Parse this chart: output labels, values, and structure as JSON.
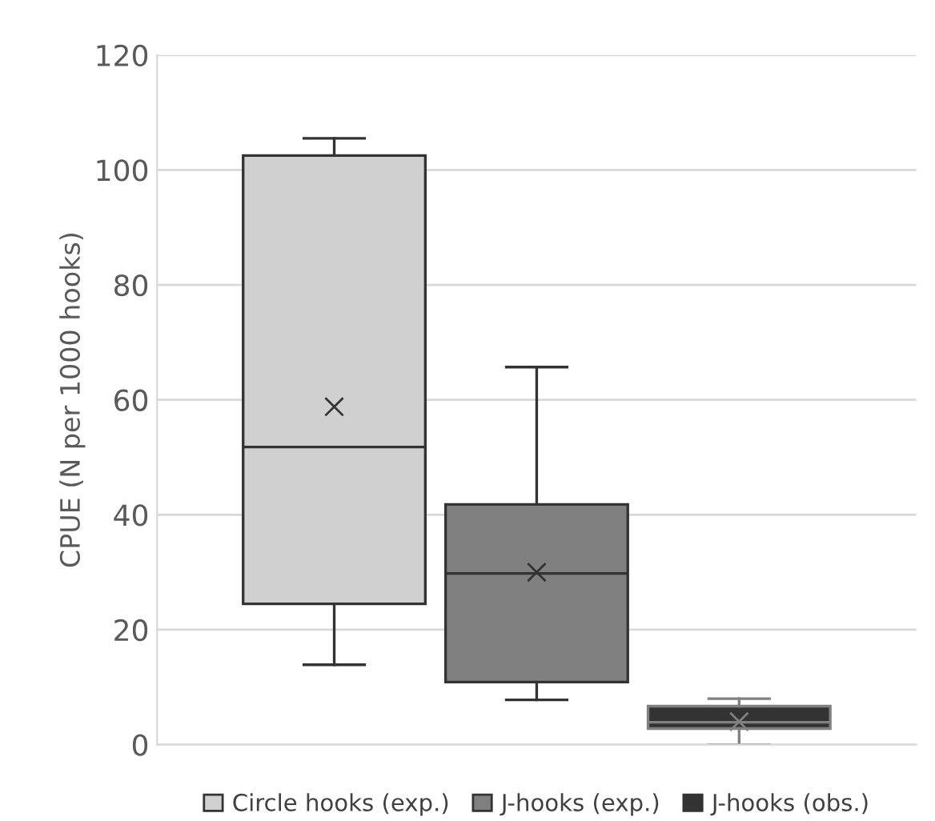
{
  "chart_data": {
    "type": "box",
    "ylabel": "CPUE (N per 1000 hooks)",
    "categories": [
      null
    ],
    "series": [
      {
        "name": "Circle hooks (exp.)",
        "color": "#d0d0d0",
        "boxes": [
          {
            "low": 13.9,
            "q1": 24.5,
            "median": 51.8,
            "q3": 102.5,
            "high": 105.5,
            "mean": 58.8
          }
        ]
      },
      {
        "name": "J-hooks (exp.)",
        "color": "#808080",
        "boxes": [
          {
            "low": 7.8,
            "q1": 10.9,
            "median": 29.8,
            "q3": 41.8,
            "high": 65.7,
            "mean": 30
          }
        ]
      },
      {
        "name": "J-hooks (obs.)",
        "color": "#333333",
        "boxes": [
          {
            "low": 0,
            "q1": 2.8,
            "median": 3.9,
            "q3": 6.7,
            "high": 8,
            "mean": 4
          }
        ]
      }
    ],
    "ylim": [
      0,
      120
    ],
    "yticks": [
      0,
      20,
      40,
      60,
      80,
      100,
      120
    ],
    "grid": "y",
    "legend": "bottom"
  }
}
